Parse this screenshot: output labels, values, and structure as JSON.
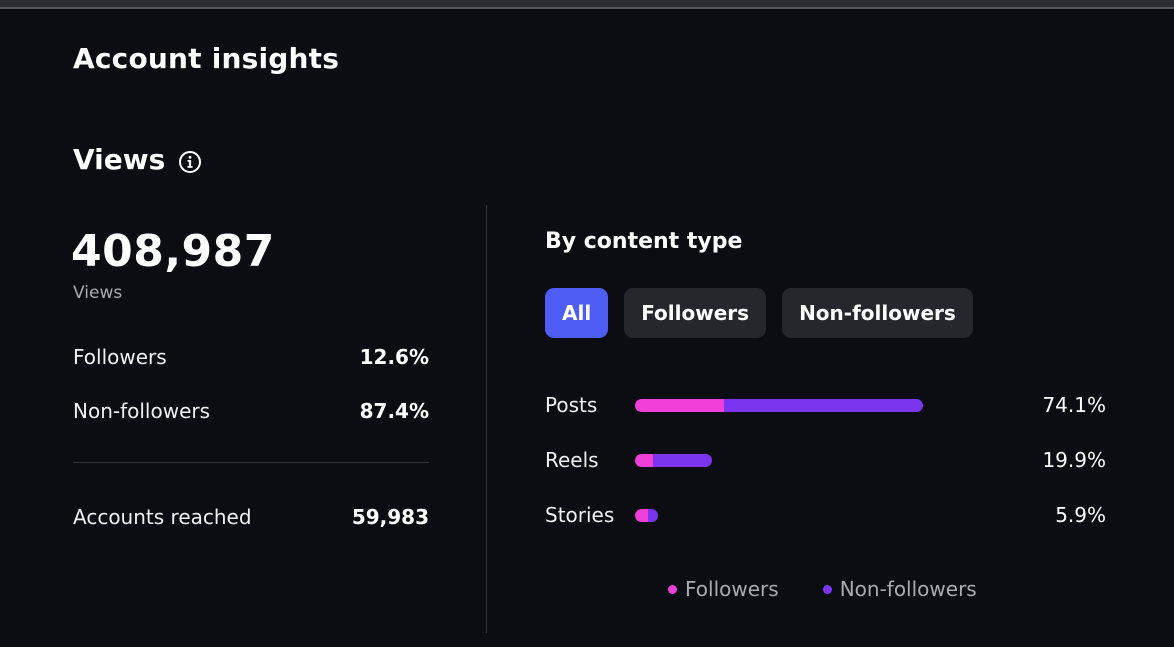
{
  "page": {
    "title": "Account insights"
  },
  "views": {
    "title": "Views",
    "info_icon": "info-icon",
    "total": "408,987",
    "total_label": "Views",
    "stats": [
      {
        "label": "Followers",
        "value": "12.6%"
      },
      {
        "label": "Non-followers",
        "value": "87.4%"
      }
    ],
    "accounts_reached": {
      "label": "Accounts reached",
      "value": "59,983"
    }
  },
  "content_type": {
    "title": "By content type",
    "tabs": [
      {
        "label": "All",
        "active": true
      },
      {
        "label": "Followers",
        "active": false
      },
      {
        "label": "Non-followers",
        "active": false
      }
    ],
    "rows": [
      {
        "label": "Posts",
        "value": "74.1%",
        "total_pct": 74.1,
        "followers_share": 0.31
      },
      {
        "label": "Reels",
        "value": "19.9%",
        "total_pct": 19.9,
        "followers_share": 0.23
      },
      {
        "label": "Stories",
        "value": "5.9%",
        "total_pct": 5.9,
        "followers_share": 0.55
      }
    ],
    "legend": [
      {
        "label": "Followers",
        "color": "#f03fd6"
      },
      {
        "label": "Non-followers",
        "color": "#7b35ef"
      }
    ]
  },
  "colors": {
    "accent": "#4e5ef5",
    "followers": "#f03fd6",
    "non_followers": "#7b35ef",
    "background": "#0b0d12"
  }
}
